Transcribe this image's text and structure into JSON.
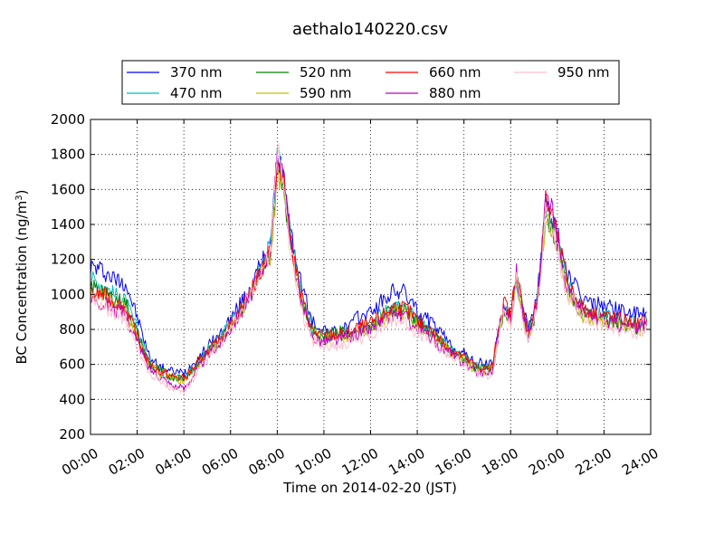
{
  "chart_data": {
    "type": "line",
    "title": "aethalo140220.csv",
    "xlabel": "Time on 2014-02-20 (JST)",
    "ylabel": "BC Concentration (ng/m³)",
    "xlim": [
      "00:00",
      "24:00"
    ],
    "ylim": [
      200,
      2000
    ],
    "grid": true,
    "legend_position": "top",
    "x_ticks": [
      "00:00",
      "02:00",
      "04:00",
      "06:00",
      "08:00",
      "10:00",
      "12:00",
      "14:00",
      "16:00",
      "18:00",
      "20:00",
      "22:00",
      "24:00"
    ],
    "y_ticks": [
      "200",
      "400",
      "600",
      "800",
      "1000",
      "1200",
      "1400",
      "1600",
      "1800",
      "2000"
    ],
    "x": [
      "00:00",
      "00:30",
      "01:00",
      "01:30",
      "02:00",
      "02:30",
      "03:00",
      "03:30",
      "04:00",
      "04:30",
      "05:00",
      "05:30",
      "06:00",
      "06:30",
      "07:00",
      "07:30",
      "07:45",
      "08:00",
      "08:15",
      "08:30",
      "09:00",
      "09:30",
      "10:00",
      "10:30",
      "11:00",
      "11:30",
      "12:00",
      "12:30",
      "13:00",
      "13:30",
      "14:00",
      "14:30",
      "15:00",
      "15:30",
      "16:00",
      "16:30",
      "17:00",
      "17:15",
      "17:30",
      "17:45",
      "18:00",
      "18:15",
      "18:30",
      "18:45",
      "19:00",
      "19:15",
      "19:30",
      "19:45",
      "20:00",
      "20:15",
      "20:30",
      "20:45",
      "21:00",
      "21:30",
      "22:00",
      "22:30",
      "23:00",
      "23:30",
      "23:50"
    ],
    "series": [
      {
        "name": "370 nm",
        "color": "#0000ff",
        "values": [
          1160,
          1140,
          1090,
          1070,
          870,
          650,
          580,
          560,
          550,
          620,
          700,
          760,
          860,
          960,
          1080,
          1230,
          1330,
          1760,
          1700,
          1400,
          1080,
          840,
          800,
          780,
          810,
          870,
          900,
          960,
          1020,
          1010,
          900,
          850,
          780,
          700,
          660,
          610,
          600,
          620,
          800,
          930,
          870,
          1100,
          940,
          800,
          900,
          1120,
          1500,
          1450,
          1340,
          1210,
          1100,
          1050,
          980,
          950,
          940,
          920,
          900,
          880,
          900
        ]
      },
      {
        "name": "470 nm",
        "color": "#00bfbf",
        "values": [
          1090,
          1060,
          1000,
          960,
          800,
          620,
          560,
          530,
          520,
          600,
          680,
          740,
          840,
          930,
          1050,
          1210,
          1300,
          1760,
          1690,
          1380,
          1020,
          800,
          760,
          760,
          780,
          820,
          840,
          890,
          940,
          920,
          850,
          800,
          740,
          680,
          640,
          590,
          580,
          600,
          800,
          910,
          850,
          1080,
          920,
          780,
          880,
          1090,
          1460,
          1400,
          1300,
          1160,
          1040,
          990,
          920,
          900,
          880,
          860,
          850,
          830,
          850
        ]
      },
      {
        "name": "520 nm",
        "color": "#008000",
        "values": [
          1040,
          1030,
          970,
          950,
          780,
          610,
          560,
          530,
          520,
          590,
          670,
          730,
          830,
          920,
          1040,
          1180,
          1260,
          1720,
          1670,
          1360,
          1000,
          790,
          760,
          790,
          770,
          800,
          820,
          870,
          920,
          910,
          840,
          790,
          730,
          670,
          630,
          580,
          570,
          590,
          810,
          920,
          850,
          1100,
          910,
          770,
          860,
          1080,
          1440,
          1390,
          1290,
          1140,
          1020,
          970,
          900,
          880,
          860,
          840,
          830,
          810,
          830
        ]
      },
      {
        "name": "590 nm",
        "color": "#bfbf00",
        "values": [
          1010,
          1000,
          950,
          920,
          760,
          600,
          550,
          520,
          510,
          580,
          660,
          720,
          820,
          910,
          1030,
          1160,
          1240,
          1700,
          1650,
          1340,
          990,
          780,
          750,
          760,
          760,
          790,
          810,
          860,
          900,
          890,
          830,
          780,
          720,
          660,
          620,
          570,
          560,
          580,
          790,
          900,
          840,
          1080,
          900,
          760,
          850,
          1060,
          1420,
          1370,
          1270,
          1120,
          1000,
          950,
          880,
          860,
          840,
          820,
          810,
          800,
          820
        ]
      },
      {
        "name": "660 nm",
        "color": "#ff0000",
        "values": [
          1000,
          1000,
          960,
          920,
          760,
          600,
          560,
          530,
          520,
          590,
          670,
          730,
          830,
          930,
          1050,
          1200,
          1280,
          1780,
          1700,
          1380,
          1000,
          790,
          760,
          770,
          780,
          810,
          830,
          880,
          930,
          920,
          850,
          800,
          740,
          680,
          640,
          590,
          570,
          600,
          840,
          960,
          870,
          1150,
          930,
          780,
          880,
          1110,
          1530,
          1470,
          1330,
          1180,
          1050,
          1000,
          930,
          900,
          880,
          860,
          850,
          830,
          860
        ]
      },
      {
        "name": "880 nm",
        "color": "#bf00bf",
        "values": [
          980,
          960,
          920,
          880,
          730,
          580,
          530,
          480,
          460,
          560,
          650,
          710,
          810,
          910,
          1040,
          1190,
          1280,
          1830,
          1720,
          1360,
          960,
          760,
          730,
          740,
          750,
          780,
          800,
          840,
          890,
          870,
          800,
          760,
          700,
          650,
          610,
          560,
          550,
          570,
          800,
          930,
          840,
          1120,
          900,
          760,
          860,
          1090,
          1580,
          1480,
          1310,
          1140,
          1010,
          970,
          900,
          870,
          850,
          830,
          820,
          800,
          830
        ]
      },
      {
        "name": "950 nm",
        "color": "#ffc0cb",
        "values": [
          960,
          940,
          900,
          860,
          700,
          560,
          500,
          460,
          440,
          530,
          630,
          700,
          800,
          900,
          1030,
          1180,
          1260,
          1810,
          1690,
          1330,
          930,
          740,
          700,
          710,
          720,
          750,
          770,
          810,
          860,
          840,
          780,
          740,
          690,
          640,
          600,
          550,
          540,
          560,
          780,
          900,
          820,
          1080,
          880,
          740,
          840,
          1060,
          1460,
          1400,
          1260,
          1100,
          970,
          940,
          870,
          840,
          820,
          800,
          790,
          780,
          800
        ]
      }
    ]
  }
}
